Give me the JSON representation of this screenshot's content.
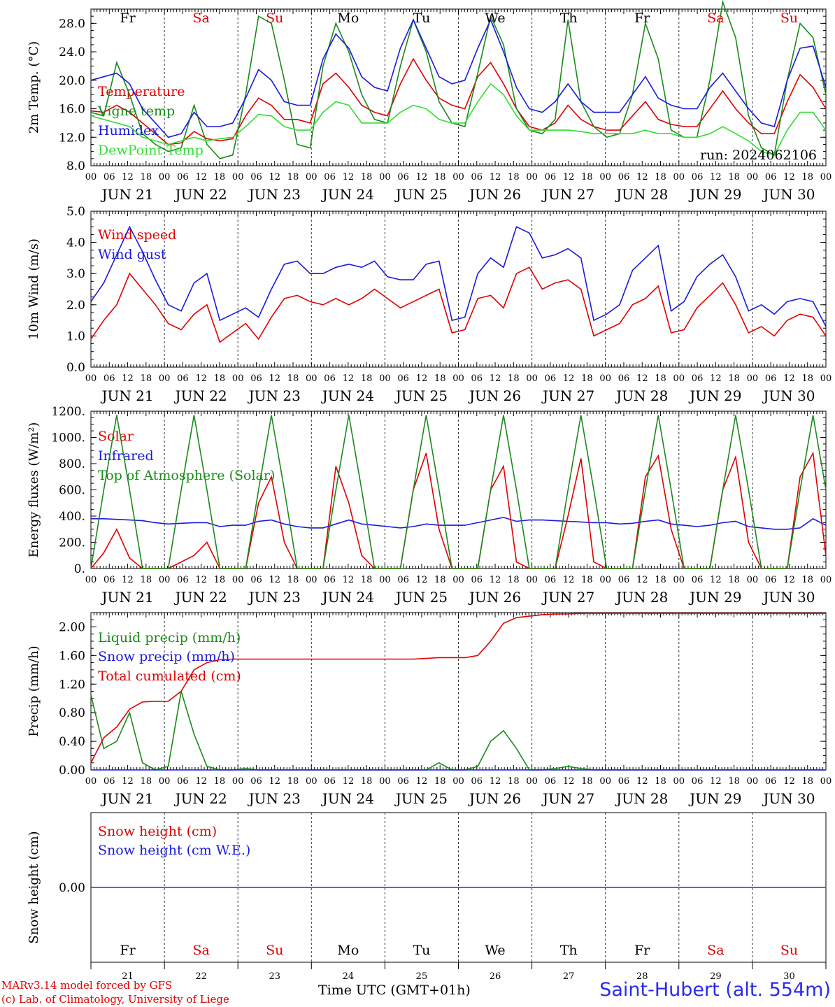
{
  "run_label": "run: 2024062106",
  "days": {
    "weekday_top": [
      "Fr",
      "Sa",
      "Su",
      "Mo",
      "Tu",
      "We",
      "Th",
      "Fr",
      "Sa",
      "Su"
    ],
    "weekday_colors": [
      "#000000",
      "#e00000",
      "#e00000",
      "#000000",
      "#000000",
      "#000000",
      "#000000",
      "#000000",
      "#e00000",
      "#e00000"
    ],
    "date_labels": [
      "JUN 21",
      "JUN 22",
      "JUN 23",
      "JUN 24",
      "JUN 25",
      "JUN 26",
      "JUN 27",
      "JUN 28",
      "JUN 29",
      "JUN 30"
    ],
    "bottom_numbers": [
      "21",
      "22",
      "23",
      "24",
      "25",
      "26",
      "27",
      "28",
      "29",
      "30"
    ],
    "hour_ticks": [
      "00",
      "06",
      "12",
      "18"
    ],
    "final_tick": "00"
  },
  "footer": {
    "model": "MARv3.14 model forced by GFS",
    "lab": "(c) Lab. of Climatology, University of Liege",
    "xlabel": "Time UTC (GMT+01h)",
    "station": "Saint-Hubert (alt. 554m)"
  },
  "colors": {
    "red": "#e00000",
    "green": "#1a8a1a",
    "blue": "#1a1ae0",
    "lightgreen": "#33dd33",
    "purple": "#8a2be2"
  },
  "chart_data": [
    {
      "type": "line",
      "id": "temp",
      "ylabel": "2m Temp. (°C)",
      "ylim": [
        8,
        30
      ],
      "yticks": [
        8,
        12,
        16,
        20,
        24,
        28
      ],
      "ytick_labels": [
        "8.0",
        "12.0",
        "16.0",
        "20.0",
        "24.0",
        "28.0"
      ],
      "x_hours_step": 6,
      "series": [
        {
          "name": "Temperature",
          "color": "#e00000",
          "values": [
            15.7,
            15.5,
            16.5,
            15.5,
            14.0,
            12.5,
            11.0,
            11.2,
            12.8,
            11.8,
            11.5,
            11.8,
            15.0,
            17.5,
            16.5,
            14.5,
            14.5,
            14.0,
            19.5,
            21.0,
            19.0,
            16.5,
            15.5,
            15.0,
            19.5,
            23.0,
            20.0,
            17.5,
            16.5,
            16.0,
            20.5,
            22.5,
            19.5,
            16.0,
            13.5,
            13.0,
            14.0,
            16.5,
            14.5,
            13.5,
            13.0,
            13.0,
            15.0,
            17.0,
            14.5,
            13.8,
            13.5,
            13.5,
            16.0,
            18.5,
            16.0,
            14.0,
            12.5,
            12.5,
            17.0,
            20.8,
            19.0,
            16.0
          ]
        },
        {
          "name": "Vigne temp",
          "color": "#1a8a1a",
          "values": [
            15.5,
            15.0,
            22.5,
            18.0,
            12.5,
            11.0,
            10.0,
            10.5,
            16.5,
            11.0,
            9.0,
            9.5,
            18.0,
            29.0,
            28.0,
            20.0,
            11.0,
            10.5,
            22.0,
            28.0,
            24.0,
            18.0,
            14.5,
            14.0,
            22.0,
            28.5,
            24.0,
            17.0,
            14.0,
            13.5,
            21.0,
            29.0,
            25.0,
            16.0,
            13.0,
            12.5,
            14.5,
            28.5,
            17.0,
            13.5,
            12.0,
            12.5,
            18.0,
            28.0,
            23.0,
            13.0,
            12.0,
            12.0,
            20.0,
            31.0,
            26.0,
            15.0,
            10.5,
            9.5,
            20.0,
            28.0,
            26.0,
            18.0
          ]
        },
        {
          "name": "Humidex",
          "color": "#1a1ae0",
          "values": [
            20.0,
            20.5,
            21.0,
            19.5,
            16.0,
            14.0,
            12.0,
            12.5,
            15.5,
            13.5,
            13.5,
            14.0,
            17.5,
            21.5,
            20.0,
            17.0,
            16.5,
            16.5,
            23.0,
            26.5,
            24.5,
            20.5,
            19.0,
            18.5,
            24.5,
            28.5,
            24.5,
            20.5,
            19.5,
            20.0,
            24.5,
            28.5,
            24.0,
            19.0,
            16.0,
            15.5,
            17.0,
            19.5,
            17.0,
            15.5,
            15.5,
            15.5,
            18.0,
            20.5,
            17.5,
            16.5,
            16.0,
            16.0,
            19.0,
            21.0,
            18.5,
            16.0,
            14.0,
            13.5,
            20.0,
            24.5,
            24.8,
            19.0
          ]
        },
        {
          "name": "DewPoint Temp",
          "color": "#33dd33",
          "values": [
            15.0,
            14.5,
            14.0,
            13.5,
            12.0,
            11.5,
            11.0,
            11.5,
            12.0,
            11.5,
            11.8,
            12.0,
            13.5,
            15.2,
            15.0,
            13.5,
            13.0,
            13.0,
            15.5,
            17.0,
            16.5,
            14.0,
            14.0,
            14.0,
            15.5,
            16.5,
            16.0,
            14.5,
            14.0,
            14.0,
            17.0,
            19.5,
            18.0,
            15.0,
            13.0,
            13.0,
            13.0,
            13.0,
            12.8,
            12.5,
            12.5,
            12.5,
            12.5,
            13.0,
            12.5,
            12.5,
            12.0,
            12.0,
            12.5,
            13.5,
            12.5,
            11.5,
            10.0,
            9.5,
            13.0,
            15.5,
            15.5,
            13.0
          ]
        }
      ]
    },
    {
      "type": "line",
      "id": "wind",
      "ylabel": "10m Wind (m/s)",
      "ylim": [
        0,
        5
      ],
      "yticks": [
        0,
        1,
        2,
        3,
        4,
        5
      ],
      "ytick_labels": [
        "0.0",
        "1.0",
        "2.0",
        "3.0",
        "4.0",
        "5.0"
      ],
      "x_hours_step": 6,
      "series": [
        {
          "name": "Wind speed",
          "color": "#e00000",
          "values": [
            0.9,
            1.5,
            2.0,
            3.0,
            2.5,
            2.0,
            1.4,
            1.2,
            1.7,
            2.0,
            0.8,
            1.1,
            1.4,
            0.9,
            1.6,
            2.2,
            2.3,
            2.1,
            2.0,
            2.2,
            2.0,
            2.2,
            2.5,
            2.2,
            1.9,
            2.1,
            2.3,
            2.5,
            1.1,
            1.2,
            2.2,
            2.3,
            1.9,
            3.0,
            3.2,
            2.5,
            2.7,
            2.8,
            2.5,
            1.0,
            1.2,
            1.4,
            2.0,
            2.2,
            2.6,
            1.1,
            1.2,
            1.9,
            2.3,
            2.7,
            2.0,
            1.1,
            1.3,
            1.0,
            1.5,
            1.7,
            1.6,
            1.0
          ]
        },
        {
          "name": "Wind gust",
          "color": "#1a1ae0",
          "values": [
            2.1,
            2.7,
            3.6,
            4.5,
            3.7,
            2.8,
            2.0,
            1.8,
            2.7,
            3.0,
            1.5,
            1.7,
            1.9,
            1.6,
            2.5,
            3.3,
            3.4,
            3.0,
            3.0,
            3.2,
            3.3,
            3.2,
            3.4,
            2.9,
            2.8,
            2.8,
            3.3,
            3.4,
            1.5,
            1.6,
            3.0,
            3.5,
            3.2,
            4.5,
            4.3,
            3.5,
            3.6,
            3.8,
            3.5,
            1.5,
            1.7,
            2.0,
            3.1,
            3.5,
            3.9,
            1.8,
            2.1,
            2.9,
            3.3,
            3.6,
            2.9,
            1.8,
            2.0,
            1.7,
            2.1,
            2.2,
            2.1,
            1.3
          ]
        }
      ]
    },
    {
      "type": "line",
      "id": "energy",
      "ylabel": "Energy fluxes (W/m²)",
      "ylim": [
        0,
        1200
      ],
      "yticks": [
        0,
        200,
        400,
        600,
        800,
        1000,
        1200
      ],
      "ytick_labels": [
        "0.",
        "200.",
        "400.",
        "600.",
        "800.",
        "1000.",
        "1200."
      ],
      "x_hours_step": 6,
      "series": [
        {
          "name": "Solar",
          "color": "#e00000",
          "values": [
            0,
            120,
            300,
            80,
            0,
            0,
            0,
            50,
            100,
            200,
            0,
            0,
            0,
            500,
            700,
            200,
            0,
            0,
            0,
            780,
            500,
            100,
            0,
            0,
            0,
            600,
            880,
            300,
            0,
            0,
            0,
            600,
            780,
            50,
            0,
            0,
            0,
            400,
            840,
            50,
            0,
            0,
            0,
            700,
            860,
            300,
            0,
            0,
            0,
            600,
            850,
            200,
            0,
            0,
            0,
            700,
            880,
            100
          ]
        },
        {
          "name": "Infrared",
          "color": "#1a1ae0",
          "values": [
            380,
            380,
            375,
            370,
            365,
            350,
            340,
            345,
            350,
            350,
            320,
            330,
            330,
            360,
            370,
            340,
            320,
            310,
            310,
            340,
            370,
            340,
            330,
            320,
            310,
            320,
            340,
            330,
            330,
            330,
            350,
            370,
            390,
            360,
            370,
            370,
            365,
            360,
            355,
            350,
            350,
            340,
            345,
            360,
            370,
            340,
            330,
            320,
            330,
            350,
            360,
            320,
            310,
            300,
            300,
            310,
            380,
            330
          ]
        },
        {
          "name": "Top of Atmosphere (Solar)",
          "color": "#1a8a1a",
          "values": [
            0,
            600,
            1170,
            600,
            0,
            0,
            0,
            600,
            1170,
            600,
            0,
            0,
            0,
            600,
            1170,
            600,
            0,
            0,
            0,
            600,
            1170,
            600,
            0,
            0,
            0,
            600,
            1170,
            600,
            0,
            0,
            0,
            600,
            1170,
            600,
            0,
            0,
            0,
            600,
            1170,
            600,
            0,
            0,
            0,
            600,
            1170,
            600,
            0,
            0,
            0,
            600,
            1170,
            600,
            0,
            0,
            0,
            600,
            1170,
            600
          ]
        }
      ]
    },
    {
      "type": "line",
      "id": "precip",
      "ylabel": "Precip (mm/h)",
      "ylim": [
        0,
        2.2
      ],
      "yticks": [
        0,
        0.4,
        0.8,
        1.2,
        1.6,
        2.0
      ],
      "ytick_labels": [
        "0.00",
        "0.40",
        "0.80",
        "1.20",
        "1.60",
        "2.00"
      ],
      "x_hours_step": 6,
      "series": [
        {
          "name": "Liquid precip (mm/h)",
          "color": "#1a8a1a",
          "values": [
            1.05,
            0.3,
            0.4,
            0.8,
            0.1,
            0.0,
            0.05,
            1.1,
            0.5,
            0.05,
            0.0,
            0.0,
            0.02,
            0.0,
            0.0,
            0.0,
            0.0,
            0.0,
            0.0,
            0.0,
            0.0,
            0.0,
            0.0,
            0.0,
            0.0,
            0.0,
            0.0,
            0.1,
            0.0,
            0.0,
            0.05,
            0.4,
            0.55,
            0.3,
            0.0,
            0.0,
            0.02,
            0.05,
            0.02,
            0.0,
            0.0,
            0.0,
            0.0,
            0.0,
            0.0,
            0.0,
            0.0,
            0.0,
            0.0,
            0.0,
            0.0,
            0.0,
            0.0,
            0.0,
            0.0,
            0.0,
            0.0,
            0.0
          ]
        },
        {
          "name": "Snow precip (mm/h)",
          "color": "#1a1ae0",
          "values": [
            0,
            0,
            0,
            0,
            0,
            0,
            0,
            0,
            0,
            0,
            0,
            0,
            0,
            0,
            0,
            0,
            0,
            0,
            0,
            0,
            0,
            0,
            0,
            0,
            0,
            0,
            0,
            0,
            0,
            0,
            0,
            0,
            0,
            0,
            0,
            0,
            0,
            0,
            0,
            0,
            0,
            0,
            0,
            0,
            0,
            0,
            0,
            0,
            0,
            0,
            0,
            0,
            0,
            0,
            0,
            0,
            0,
            0
          ]
        },
        {
          "name": "Total cumulated (cm)",
          "color": "#e00000",
          "values": [
            0.1,
            0.45,
            0.6,
            0.85,
            0.95,
            0.96,
            0.96,
            1.1,
            1.4,
            1.5,
            1.54,
            1.55,
            1.55,
            1.55,
            1.55,
            1.55,
            1.55,
            1.55,
            1.55,
            1.55,
            1.55,
            1.55,
            1.55,
            1.55,
            1.55,
            1.55,
            1.56,
            1.57,
            1.57,
            1.57,
            1.6,
            1.8,
            2.05,
            2.13,
            2.15,
            2.17,
            2.18,
            2.18,
            2.19,
            2.19,
            2.19,
            2.19,
            2.19,
            2.19,
            2.19,
            2.19,
            2.19,
            2.19,
            2.19,
            2.19,
            2.19,
            2.19,
            2.19,
            2.19,
            2.19,
            2.19,
            2.19,
            2.19
          ]
        }
      ]
    },
    {
      "type": "line",
      "id": "snow",
      "ylabel": "Snow height (cm)",
      "ylim": [
        -1,
        1
      ],
      "yticks": [
        0
      ],
      "ytick_labels": [
        "0.00"
      ],
      "x_hours_step": 6,
      "series": [
        {
          "name": "Snow height (cm)",
          "color": "#e00000",
          "values": [
            0,
            0
          ]
        },
        {
          "name": "Snow height (cm W.E.)",
          "color": "#1a1ae0",
          "values": [
            0,
            0
          ]
        }
      ]
    }
  ]
}
